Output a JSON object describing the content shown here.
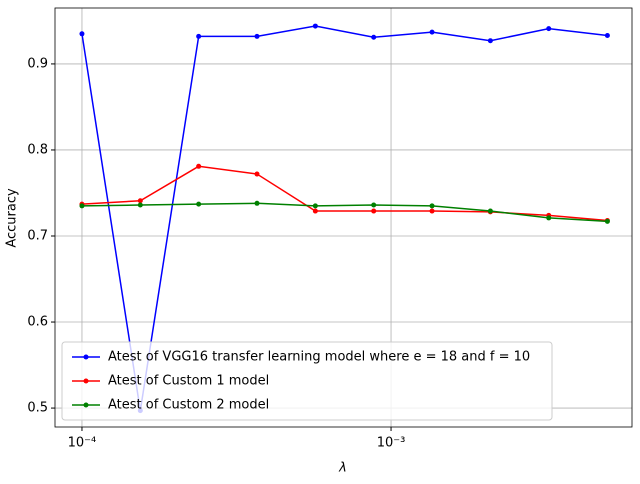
{
  "chart_data": {
    "type": "line",
    "x_label": "λ",
    "y_label": "Accuracy",
    "x": [
      0.0001,
      0.00015445,
      0.00023853,
      0.0003684,
      0.00056899,
      0.00087876,
      0.0013572,
      0.0020961,
      0.0032374,
      0.0050119
    ],
    "series": [
      {
        "name": "Atest of VGG16 transfer learning model where e = 18 and f = 10",
        "color": "#0000ff",
        "values": [
          0.935,
          0.497,
          0.932,
          0.932,
          0.944,
          0.931,
          0.937,
          0.927,
          0.941,
          0.933
        ]
      },
      {
        "name": "Atest of Custom 1 model",
        "color": "#ff0000",
        "values": [
          0.737,
          0.741,
          0.781,
          0.772,
          0.729,
          0.729,
          0.729,
          0.728,
          0.724,
          0.718
        ]
      },
      {
        "name": "Atest of Custom 2 model",
        "color": "#008000",
        "values": [
          0.735,
          0.736,
          0.737,
          0.738,
          0.735,
          0.736,
          0.735,
          0.729,
          0.721,
          0.717
        ]
      }
    ],
    "xlog": true,
    "xlim": [
      8.18e-05,
      0.00602
    ],
    "ylim": [
      0.478,
      0.965
    ],
    "xticks": [
      {
        "value": 0.0001,
        "label": "10⁻⁴"
      },
      {
        "value": 0.001,
        "label": "10⁻³"
      }
    ],
    "yticks": [
      0.5,
      0.6,
      0.7,
      0.8,
      0.9
    ],
    "grid": true,
    "legend": "lower left"
  }
}
